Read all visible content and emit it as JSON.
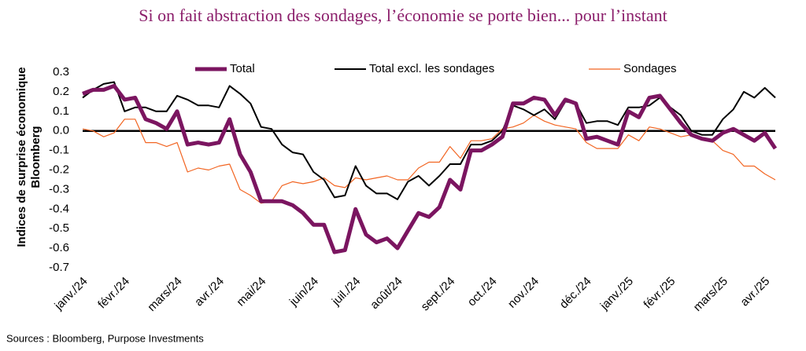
{
  "chart_data": {
    "type": "line",
    "title": "Si on fait abstraction des sondages, l’économie se porte bien... pour l’instant",
    "ylabel": [
      "Indices de surprise économique",
      "Bloomberg"
    ],
    "source": "Sources : Bloomberg, Purpose Investments",
    "categories": [
      "janv./24",
      null,
      null,
      null,
      "févr./24",
      null,
      null,
      null,
      null,
      "mars/24",
      null,
      null,
      null,
      "avr./24",
      null,
      null,
      null,
      "mai/24",
      null,
      null,
      null,
      null,
      "juin/24",
      null,
      null,
      null,
      "juil./24",
      null,
      null,
      null,
      "août/24",
      null,
      null,
      null,
      null,
      "sept./24",
      null,
      null,
      null,
      "oct./24",
      null,
      null,
      null,
      "nov./24",
      null,
      null,
      null,
      null,
      "déc./24",
      null,
      null,
      null,
      "janv./25",
      null,
      null,
      null,
      "févr./25",
      null,
      null,
      null,
      null,
      "mars/25",
      null,
      null,
      null,
      "avr./25",
      null
    ],
    "series": [
      {
        "name": "Total",
        "color": "#7b1560",
        "width": 5,
        "values": [
          0.19,
          0.21,
          0.21,
          0.23,
          0.16,
          0.17,
          0.06,
          0.04,
          0.01,
          0.1,
          -0.07,
          -0.06,
          -0.07,
          -0.06,
          0.06,
          -0.12,
          -0.21,
          -0.36,
          -0.36,
          -0.36,
          -0.38,
          -0.42,
          -0.48,
          -0.48,
          -0.62,
          -0.61,
          -0.4,
          -0.53,
          -0.57,
          -0.55,
          -0.6,
          -0.51,
          -0.42,
          -0.44,
          -0.39,
          -0.25,
          -0.3,
          -0.1,
          -0.1,
          -0.07,
          -0.03,
          0.14,
          0.14,
          0.17,
          0.16,
          0.08,
          0.16,
          0.14,
          -0.04,
          -0.03,
          -0.05,
          -0.07,
          0.1,
          0.07,
          0.17,
          0.18,
          0.11,
          0.04,
          -0.02,
          -0.04,
          -0.05,
          -0.01,
          0.01,
          -0.02,
          -0.05,
          -0.01,
          -0.09
        ]
      },
      {
        "name": "Total excl. les sondages",
        "color": "#000000",
        "width": 2,
        "values": [
          0.17,
          0.21,
          0.24,
          0.25,
          0.1,
          0.12,
          0.12,
          0.1,
          0.1,
          0.18,
          0.16,
          0.13,
          0.13,
          0.12,
          0.23,
          0.19,
          0.14,
          0.02,
          0.01,
          -0.07,
          -0.11,
          -0.12,
          -0.21,
          -0.25,
          -0.34,
          -0.33,
          -0.18,
          -0.28,
          -0.32,
          -0.32,
          -0.35,
          -0.26,
          -0.23,
          -0.28,
          -0.23,
          -0.17,
          -0.17,
          -0.07,
          -0.07,
          -0.05,
          0.0,
          0.13,
          0.11,
          0.08,
          0.11,
          0.06,
          0.15,
          0.14,
          0.04,
          0.05,
          0.05,
          0.03,
          0.12,
          0.12,
          0.13,
          0.17,
          0.12,
          0.08,
          0.0,
          -0.02,
          -0.02,
          0.06,
          0.11,
          0.2,
          0.17,
          0.22,
          0.17
        ]
      },
      {
        "name": "Sondages",
        "color": "#f26522",
        "width": 1.2,
        "values": [
          0.01,
          0.0,
          -0.03,
          -0.01,
          0.06,
          0.06,
          -0.06,
          -0.06,
          -0.08,
          -0.06,
          -0.21,
          -0.19,
          -0.2,
          -0.18,
          -0.17,
          -0.3,
          -0.33,
          -0.37,
          -0.36,
          -0.28,
          -0.26,
          -0.27,
          -0.26,
          -0.24,
          -0.28,
          -0.29,
          -0.24,
          -0.25,
          -0.24,
          -0.23,
          -0.25,
          -0.25,
          -0.19,
          -0.16,
          -0.16,
          -0.08,
          -0.14,
          -0.05,
          -0.05,
          -0.04,
          0.01,
          0.02,
          0.04,
          0.08,
          0.05,
          0.03,
          0.02,
          0.01,
          -0.06,
          -0.09,
          -0.09,
          -0.09,
          -0.02,
          -0.05,
          0.02,
          0.01,
          -0.01,
          -0.03,
          -0.02,
          -0.04,
          -0.05,
          -0.1,
          -0.12,
          -0.18,
          -0.18,
          -0.22,
          -0.25
        ]
      }
    ],
    "ylim": [
      -0.7,
      0.3
    ],
    "yticks": [
      0.3,
      0.2,
      0.1,
      {
        "value": 0,
        "label": "0.0"
      },
      -0.1,
      -0.2,
      -0.3,
      -0.4,
      -0.5,
      -0.6,
      -0.7
    ],
    "grid": false
  }
}
